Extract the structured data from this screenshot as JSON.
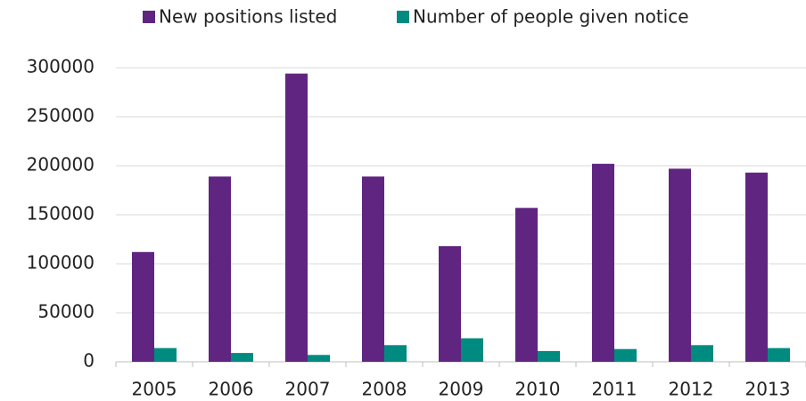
{
  "chart_data": {
    "type": "bar",
    "categories": [
      "2005",
      "2006",
      "2007",
      "2008",
      "2009",
      "2010",
      "2011",
      "2012",
      "2013"
    ],
    "series": [
      {
        "name": "New positions listed",
        "color": "#5f2580",
        "values": [
          112000,
          189000,
          294000,
          189000,
          118000,
          157000,
          202000,
          197000,
          193000
        ]
      },
      {
        "name": "Number of people given notice",
        "color": "#008b80",
        "values": [
          14000,
          9000,
          7000,
          17000,
          24000,
          11000,
          13000,
          17000,
          14000
        ]
      }
    ],
    "ylim": [
      0,
      300000
    ],
    "yticks": [
      0,
      50000,
      100000,
      150000,
      200000,
      250000,
      300000
    ],
    "grid": true,
    "legend": "top"
  }
}
